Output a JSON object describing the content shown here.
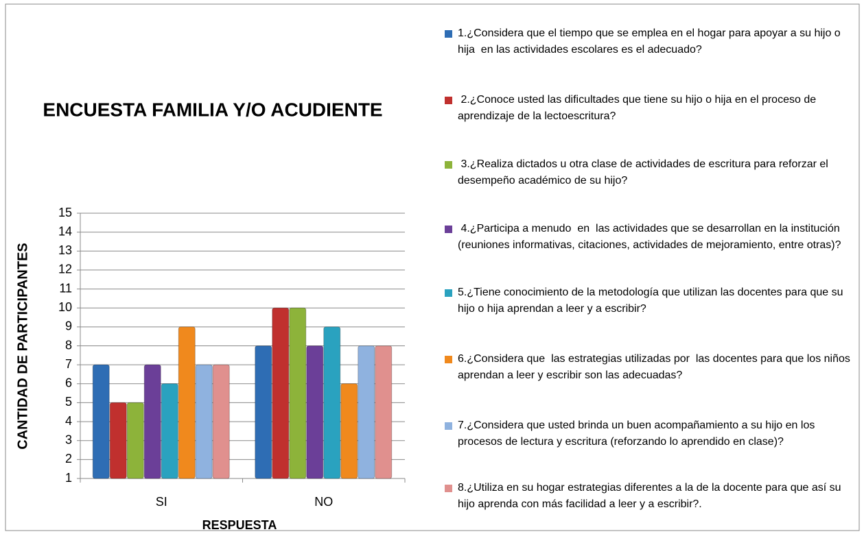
{
  "chart_data": {
    "type": "bar",
    "title": "ENCUESTA  FAMILIA Y/O ACUDIENTE",
    "x_label": "RESPUESTA",
    "y_label": "CANTIDAD DE PARTICIPANTES",
    "categories": [
      "SI",
      "NO"
    ],
    "series": [
      {
        "name": "1.¿Considera que el tiempo que se emplea en el hogar para apoyar a su hijo o hija  en las actividades escolares es el adecuado?",
        "color": "#2e6db4",
        "values": [
          7,
          8
        ]
      },
      {
        "name": " 2.¿Conoce usted las dificultades que tiene su hijo o hija en el proceso de aprendizaje de la lectoescritura?",
        "color": "#c0302e",
        "values": [
          5,
          10
        ]
      },
      {
        "name": " 3.¿Realiza dictados u otra clase de actividades de escritura para reforzar el desempeño académico de su hijo?",
        "color": "#8db33a",
        "values": [
          5,
          10
        ]
      },
      {
        "name": " 4.¿Participa a menudo  en  las actividades que se desarrollan en la institución (reuniones informativas, citaciones, actividades de mejoramiento, entre otras)?",
        "color": "#6b3f98",
        "values": [
          7,
          8
        ]
      },
      {
        "name": "5.¿Tiene conocimiento de la metodología que utilizan las docentes para que su hijo o hija aprendan a leer y a escribir?",
        "color": "#2aa2bf",
        "values": [
          6,
          9
        ]
      },
      {
        "name": "6.¿Considera que  las estrategias utilizadas por  las docentes para que los niños aprendan a leer y escribir son las adecuadas?",
        "color": "#f0891d",
        "values": [
          9,
          6
        ]
      },
      {
        "name": "7.¿Considera que usted brinda un buen acompañamiento a su hijo en los procesos de lectura y escritura (reforzando lo aprendido en clase)?",
        "color": "#8fb2df",
        "values": [
          7,
          8
        ]
      },
      {
        "name": "8.¿Utiliza en su hogar estrategias diferentes a la de la docente para que así su hijo aprenda con más facilidad a leer y a escribir?.",
        "color": "#e0908e",
        "values": [
          7,
          8
        ]
      }
    ],
    "ylim": [
      1,
      15
    ],
    "yticks": [
      1,
      2,
      3,
      4,
      5,
      6,
      7,
      8,
      9,
      10,
      11,
      12,
      13,
      14,
      15
    ],
    "grid": true,
    "legend": "right"
  }
}
